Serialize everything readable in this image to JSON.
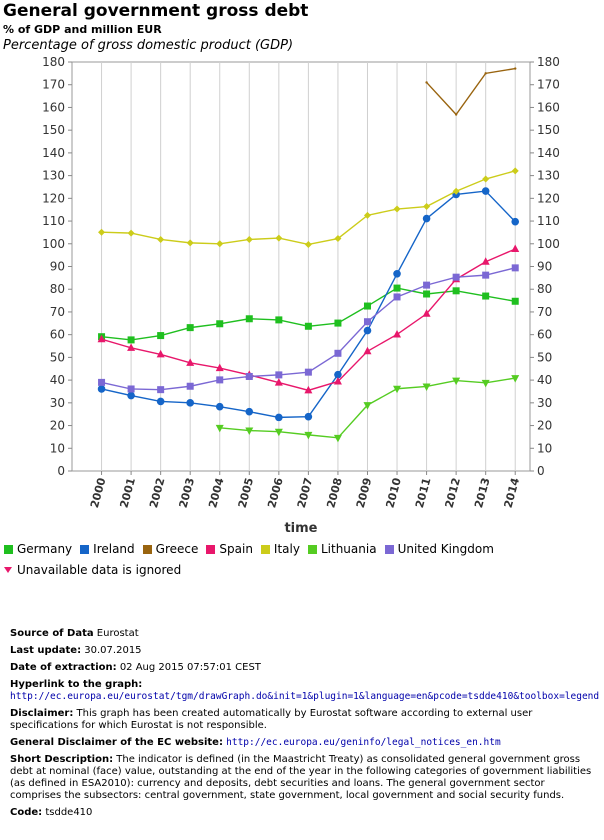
{
  "header": {
    "title": "General government gross debt",
    "subtitle": "% of GDP and million EUR",
    "unit": "Percentage of gross domestic product (GDP)"
  },
  "chart_data": {
    "type": "line",
    "x": [
      2000,
      2001,
      2002,
      2003,
      2004,
      2005,
      2006,
      2007,
      2008,
      2009,
      2010,
      2011,
      2012,
      2013,
      2014
    ],
    "xlabel": "time",
    "ylabel": "",
    "ylim": [
      0,
      180
    ],
    "yticks": [
      0,
      10,
      20,
      30,
      40,
      50,
      60,
      70,
      80,
      90,
      100,
      110,
      120,
      130,
      140,
      150,
      160,
      170,
      180
    ],
    "grid": "vertical",
    "legend_placement": "bottom",
    "series": [
      {
        "name": "Germany",
        "color": "#1fbf1f",
        "marker": "square",
        "values": [
          59.1,
          57.7,
          59.6,
          63.1,
          64.8,
          67.0,
          66.5,
          63.7,
          65.1,
          72.6,
          80.5,
          77.9,
          79.3,
          77.0,
          74.7
        ]
      },
      {
        "name": "Ireland",
        "color": "#1565c8",
        "marker": "circle",
        "values": [
          36.1,
          33.2,
          30.6,
          30.0,
          28.3,
          26.1,
          23.6,
          23.9,
          42.4,
          61.8,
          86.8,
          111.1,
          121.7,
          123.2,
          109.7
        ]
      },
      {
        "name": "Greece",
        "color": "#99640f",
        "marker": "none",
        "values": [
          null,
          null,
          null,
          null,
          null,
          null,
          null,
          null,
          null,
          null,
          null,
          171.0,
          156.9,
          175.0,
          177.1
        ]
      },
      {
        "name": "Spain",
        "color": "#e8176b",
        "marker": "triangle-up",
        "values": [
          58.0,
          54.2,
          51.3,
          47.6,
          45.3,
          42.3,
          38.9,
          35.5,
          39.4,
          52.7,
          60.1,
          69.2,
          84.4,
          92.1,
          97.7
        ]
      },
      {
        "name": "Italy",
        "color": "#cccc1a",
        "marker": "diamond",
        "values": [
          105.1,
          104.7,
          101.9,
          100.4,
          100.0,
          101.9,
          102.5,
          99.7,
          102.3,
          112.5,
          115.3,
          116.4,
          123.1,
          128.5,
          132.1
        ]
      },
      {
        "name": "Lithuania",
        "color": "#55cc22",
        "marker": "triangle-down",
        "values": [
          null,
          null,
          null,
          null,
          19.0,
          17.8,
          17.3,
          15.9,
          14.6,
          29.0,
          36.2,
          37.2,
          39.8,
          38.8,
          40.9
        ]
      },
      {
        "name": "United Kingdom",
        "color": "#7b68d4",
        "marker": "square",
        "values": [
          39.0,
          36.1,
          35.8,
          37.3,
          40.1,
          41.6,
          42.3,
          43.5,
          51.8,
          65.7,
          76.6,
          81.8,
          85.3,
          86.2,
          89.4
        ]
      }
    ]
  },
  "note": {
    "text": "Unavailable data is ignored",
    "marker_color": "#e8176b"
  },
  "meta": {
    "source_label": "Source of Data",
    "source_value": "Eurostat",
    "update_label": "Last update:",
    "update_value": "30.07.2015",
    "extraction_label": "Date of extraction:",
    "extraction_value": "02 Aug 2015 07:57:01 CEST",
    "hyperlink_label": "Hyperlink to the graph:",
    "hyperlink_value": "http://ec.europa.eu/eurostat/tgm/drawGraph.do&init=1&plugin=1&language=en&pcode=tsdde410&toolbox=legend",
    "disclaimer_label": "Disclaimer:",
    "disclaimer_value": "This graph has been created automatically by Eurostat software according to external user specifications for which Eurostat is not responsible.",
    "general_disclaimer_label": "General Disclaimer of the EC website:",
    "general_disclaimer_value": "http://ec.europa.eu/geninfo/legal_notices_en.htm",
    "short_desc_label": "Short Description:",
    "short_desc_value": "The indicator is defined (in the Maastricht Treaty) as consolidated general government gross debt at nominal (face) value, outstanding at the end of the year in the following categories of government liabilities (as defined in ESA2010): currency and deposits, debt securities and loans. The general government sector comprises the subsectors: central government, state government, local government and social security funds.",
    "code_label": "Code:",
    "code_value": "tsdde410"
  }
}
